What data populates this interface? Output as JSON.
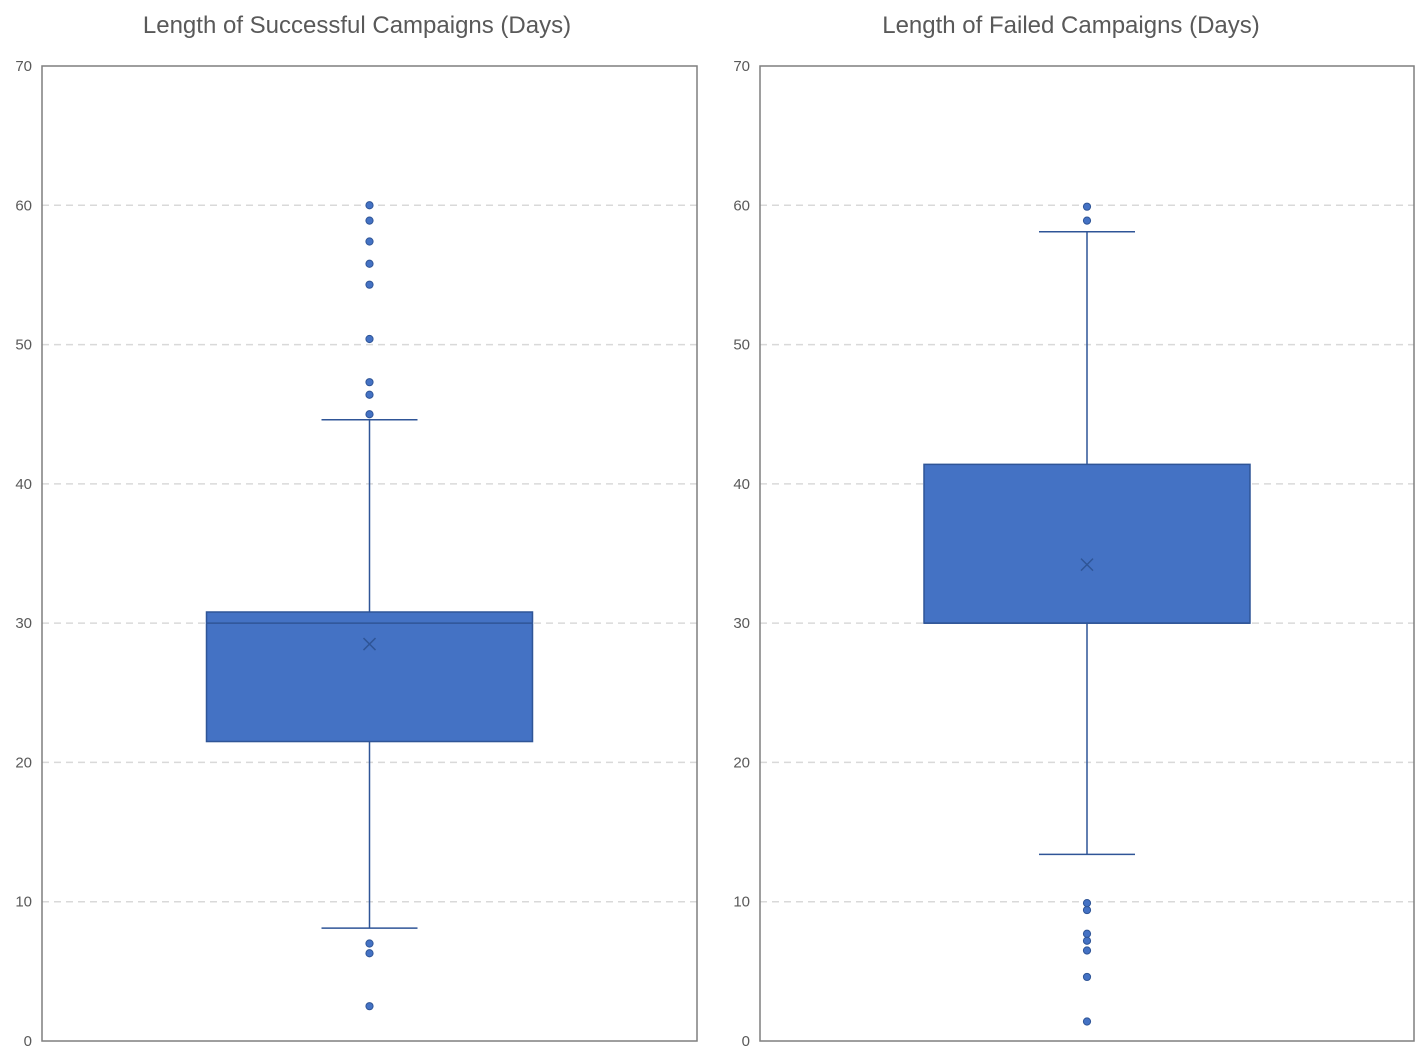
{
  "chart_data": [
    {
      "type": "box",
      "title": "Length of Successful Campaigns (Days)",
      "ylim": [
        0,
        70
      ],
      "yticks": [
        0,
        10,
        20,
        30,
        40,
        50,
        60,
        70
      ],
      "grid": true,
      "colors": {
        "box": "#4472C4",
        "box_edge": "#2F5597",
        "whisker": "#2F5597",
        "outlier": "#4472C4"
      },
      "stats": {
        "whisker_low": 8.1,
        "q1": 21.5,
        "median": 30.0,
        "q3": 30.8,
        "whisker_high": 44.6,
        "mean": 28.5
      },
      "outliers": [
        2.5,
        6.3,
        7.0,
        45.0,
        46.4,
        47.3,
        50.4,
        54.3,
        55.8,
        57.4,
        58.9,
        60.0
      ]
    },
    {
      "type": "box",
      "title": "Length of Failed Campaigns (Days)",
      "ylim": [
        0,
        70
      ],
      "yticks": [
        0,
        10,
        20,
        30,
        40,
        50,
        60,
        70
      ],
      "grid": true,
      "colors": {
        "box": "#4472C4",
        "box_edge": "#2F5597",
        "whisker": "#2F5597",
        "outlier": "#4472C4"
      },
      "stats": {
        "whisker_low": 13.4,
        "q1": 30.0,
        "median": 30.0,
        "q3": 41.4,
        "whisker_high": 58.1,
        "mean": 34.2
      },
      "outliers": [
        1.4,
        4.6,
        6.5,
        7.2,
        7.7,
        9.4,
        9.9,
        58.9,
        59.9
      ]
    }
  ]
}
